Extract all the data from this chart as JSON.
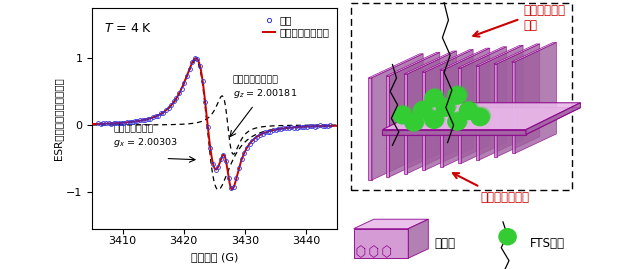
{
  "xlabel": "印加磁場 (G)",
  "ylabel": "ESR信号強度（任意目盛）",
  "xlim": [
    3405,
    3445
  ],
  "ylim": [
    -1.55,
    1.75
  ],
  "xticks": [
    3410,
    3420,
    3430,
    3440
  ],
  "yticks": [
    -1,
    0,
    1
  ],
  "T_label": "$T$ = 4 K",
  "legend_exp": "実験",
  "legend_sim": "シミュレーション",
  "label_flaton": "フラットオン配向",
  "label_gz": "$g_z$ = 2.00181",
  "label_edgeon": "エッジオン配向",
  "label_gx": "$g_x$ = 2.00303",
  "color_exp": "#3333dd",
  "color_sim": "#cc0000",
  "color_dashed": "#000000",
  "right_label_flaton": "フラットオン\n配向",
  "right_label_edgeon": "エッジオン配向",
  "right_label_polymer": "高分子",
  "right_label_fts": "FTS分子",
  "pink_face": "#d090d0",
  "pink_top": "#e8b8e8",
  "pink_dark": "#a060a0",
  "pink_edge": "#8b008b",
  "green_color": "#33cc33",
  "arrow_color": "#cc0000"
}
